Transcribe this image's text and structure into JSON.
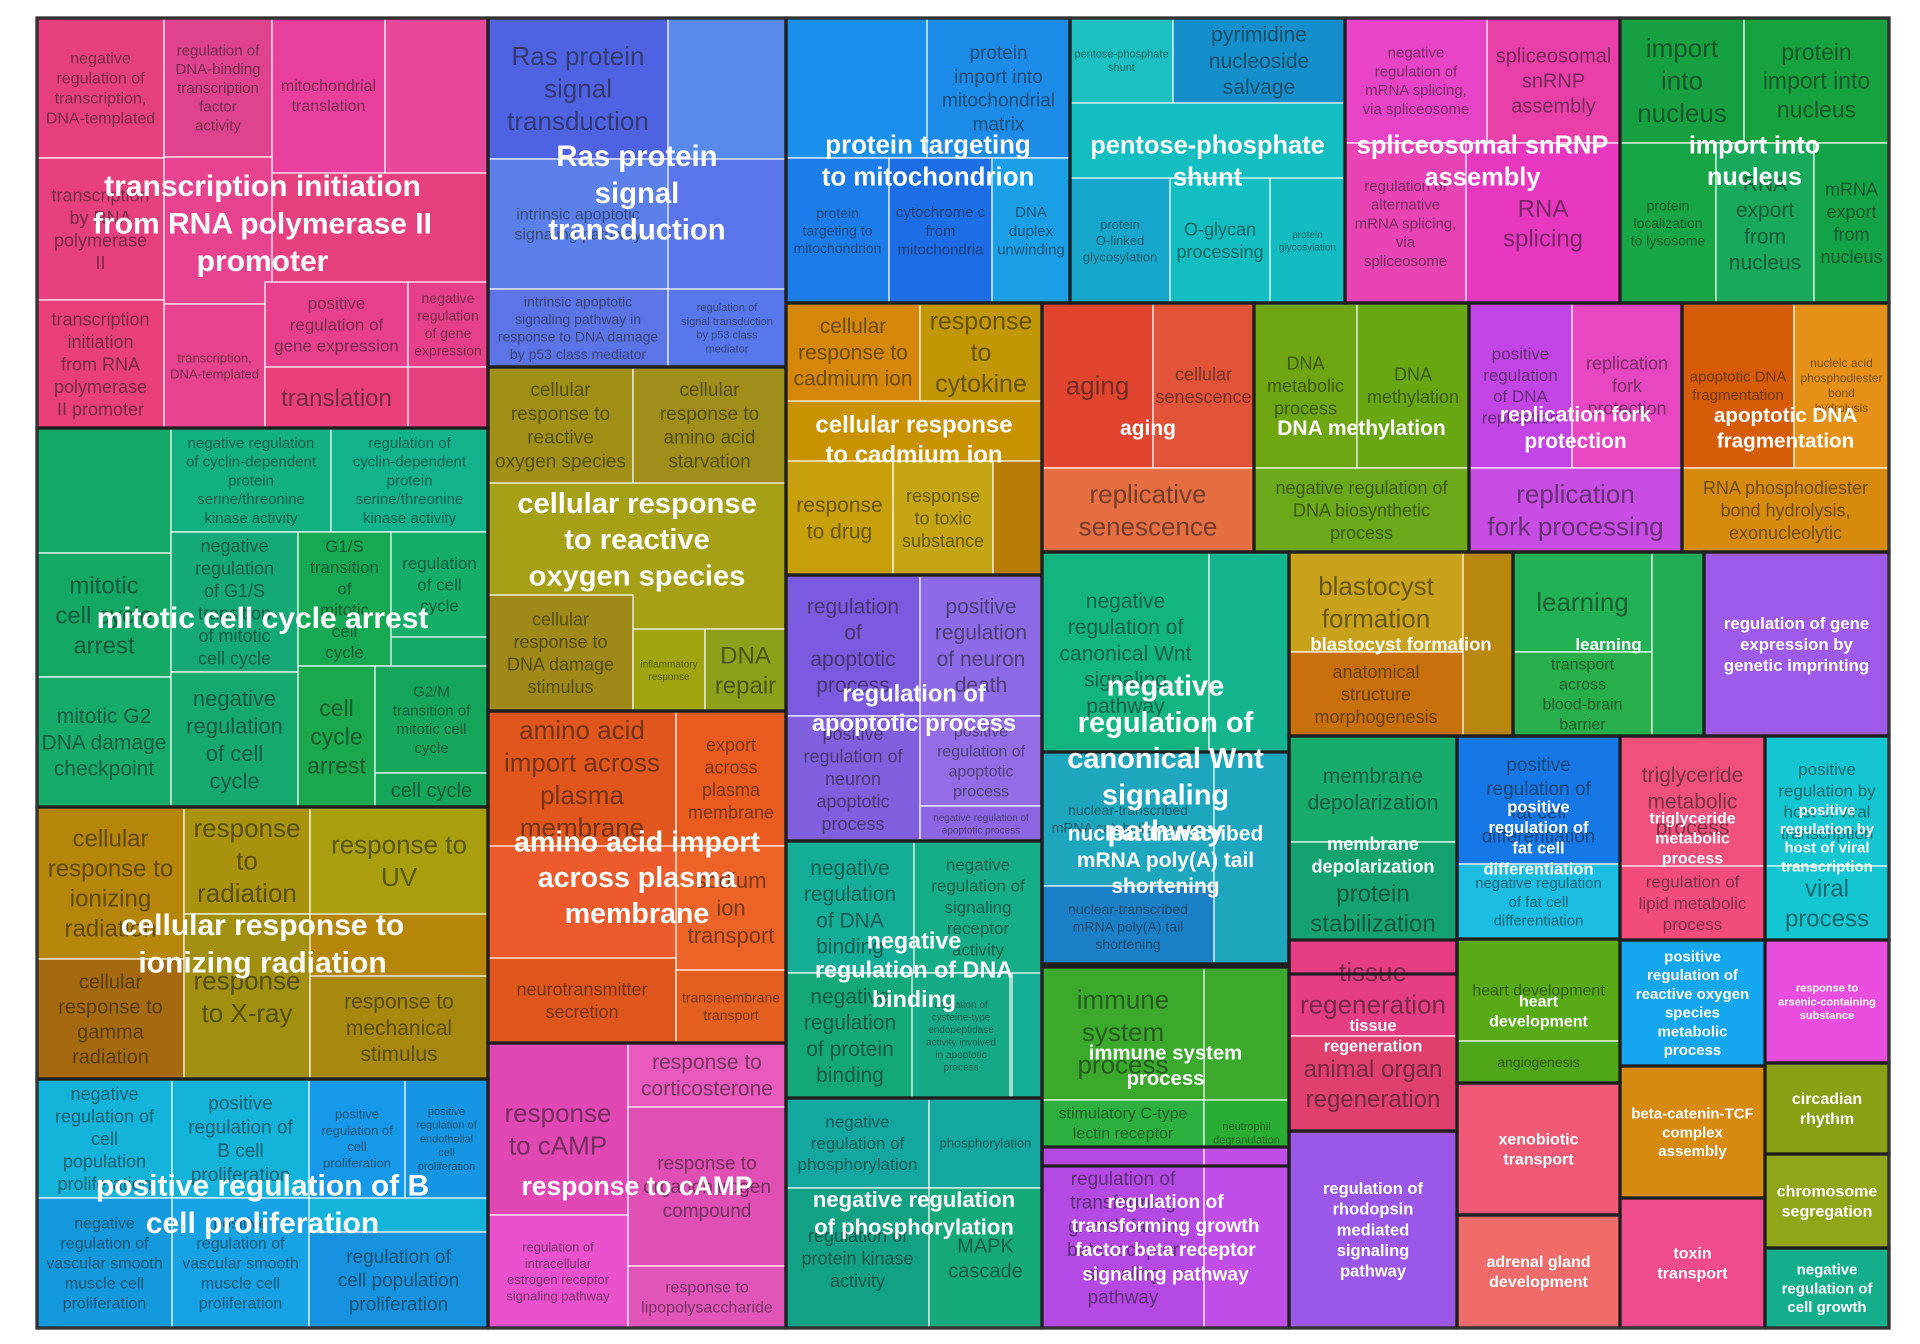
{
  "chart_data": {
    "type": "treemap",
    "groups": [
      {
        "label": "transcription initiation from RNA polymerase II promoter",
        "color": "#E7407E",
        "terms": [
          "negative regulation of transcription, DNA-templated",
          "regulation of DNA-binding transcription factor activity",
          "mitochondrial translation",
          "",
          "transcription by RNA polymerase II",
          "",
          "transcription initiation from RNA polymerase II promoter",
          "positive regulation of gene expression",
          "negative regulation of gene expression",
          "transcription, DNA-templated",
          "translation"
        ]
      },
      {
        "label": "mitotic cell cycle arrest",
        "color": "#14A866",
        "terms": [
          "",
          "negative regulation of cyclin-dependent protein serine/threonine kinase activity",
          "regulation of cyclin-dependent protein serine/threonine kinase activity",
          "mitotic cell cycle arrest",
          "negative regulation of G1/S transition of mitotic cell cycle",
          "G1/S transition of mitotic cell cycle",
          "regulation of cell cycle",
          "mitotic G2 DNA damage checkpoint",
          "negative regulation of cell cycle",
          "cell cycle arrest",
          "G2/M transition of mitotic cell cycle",
          "cell cycle"
        ]
      },
      {
        "label": "cellular response to ionizing radiation",
        "color": "#B5860A",
        "terms": [
          "cellular response to ionizing radiation",
          "response to radiation",
          "response to UV",
          "cellular response to gamma radiation",
          "response to X-ray",
          "response to mechanical stimulus"
        ]
      },
      {
        "label": "positive regulation of B cell proliferation",
        "color": "#14B4DA",
        "terms": [
          "negative regulation of cell population proliferation",
          "positive regulation of B cell proliferation",
          "positive regulation of cell proliferation",
          "positive regulation of endothelial cell proliferation",
          "negative regulation of vascular smooth muscle cell proliferation",
          "positive regulation of vascular smooth muscle cell proliferation",
          "regulation of cell population proliferation"
        ]
      },
      {
        "label": "Ras protein signal transduction",
        "color": "#5A74EC",
        "terms": [
          "Ras protein signal transduction",
          "",
          "intrinsic apoptotic signaling pathway",
          "intrinsic apoptotic signaling pathway in response to DNA damage by p53 class mediator",
          "regulation of signal transduction by p53 class mediator"
        ]
      },
      {
        "label": "cellular response to reactive oxygen species",
        "color": "#A6A016",
        "terms": [
          "cellular response to reactive oxygen species",
          "cellular response to amino acid starvation",
          "cellular response to DNA damage stimulus",
          "inflammatory response",
          "DNA repair"
        ]
      },
      {
        "label": "amino acid import across plasma membrane",
        "color": "#ED5A2C",
        "terms": [
          "amino acid import across plasma membrane",
          "export across plasma membrane",
          "sodium ion transport",
          "neurotransmitter secretion",
          "transmembrane transport"
        ]
      },
      {
        "label": "response to cAMP",
        "color": "#E355C2",
        "terms": [
          "response to cAMP",
          "response to corticosterone",
          "response to organonitrogen compound",
          "regulation of intracellular estrogen receptor signaling pathway",
          "response to lipopolysaccharide"
        ]
      },
      {
        "label": "protein targeting to mitochondrion",
        "color": "#1796EE",
        "terms": [
          "",
          "protein import into mitochondrial matrix",
          "protein targeting to mitochondrion",
          "cytochrome c from mitochondria",
          "DNA duplex unwinding"
        ]
      },
      {
        "label": "cellular response to cadmium ion",
        "color": "#C99300",
        "terms": [
          "cellular response to cadmium ion",
          "response to cytokine",
          "response to drug",
          "response to toxic substance",
          ""
        ]
      },
      {
        "label": "regulation of apoptotic process",
        "color": "#8C68E2",
        "terms": [
          "regulation of apoptotic process",
          "positive regulation of neuron death",
          "positive regulation of neuron apoptotic process",
          "positive regulation of apoptotic process",
          "negative regulation of apoptotic process"
        ]
      },
      {
        "label": "negative regulation of DNA binding",
        "color": "#14AE98",
        "terms": [
          "negative regulation of DNA binding",
          "negative regulation of signaling receptor activity",
          "negative regulation of protein binding",
          "",
          "activation of cysteine-type endopeptidase activity involved in apoptotic process"
        ]
      },
      {
        "label": "negative regulation of phosphorylation",
        "color": "#13A7A0",
        "terms": [
          "negative regulation of phosphorylation",
          "phosphorylation",
          "regulation of protein kinase activity",
          "MAPK cascade"
        ]
      },
      {
        "label": "pentose-phosphate shunt",
        "color": "#13BEC0",
        "terms": [
          "pentose-phosphate shunt",
          "pyrimidine nucleoside salvage",
          "protein O-linked glycosylation",
          "O-glycan processing",
          "protein glycosylation"
        ]
      },
      {
        "label": "aging",
        "color": "#E8523F",
        "terms": [
          "aging",
          "cellular senescence",
          "replicative senescence"
        ]
      },
      {
        "label": "negative regulation of canonical Wnt signaling pathway",
        "color": "#12B482",
        "terms": [
          "negative regulation of canonical Wnt signaling pathway",
          ""
        ]
      },
      {
        "label": "nuclear-transcribed mRNA poly(A) tail shortening",
        "color": "#1EA6BF",
        "terms": [
          "nuclear-transcribed mRNA catabolic process",
          "nuclear-transcribed mRNA poly(A) tail shortening",
          ""
        ]
      },
      {
        "label": "immune system process",
        "color": "#3BAA2C",
        "terms": [
          "immune system process",
          "stimulatory C-type lectin receptor signaling pathway",
          "neutrophil degranulation"
        ]
      },
      {
        "label": "regulation of transforming growth factor beta receptor signaling pathway",
        "color": "#B449E4",
        "terms": [
          "regulation of transforming growth factor beta receptor signaling pathway",
          ""
        ]
      },
      {
        "label": "spliceosomal snRNP assembly",
        "color": "#E83FC0",
        "terms": [
          "negative regulation of mRNA splicing, via spliceosome",
          "spliceosomal snRNP assembly",
          "regulation of alternative mRNA splicing, via spliceosome",
          "RNA splicing"
        ]
      },
      {
        "label": "DNA methylation",
        "color": "#6BA81A",
        "terms": [
          "DNA metabolic process",
          "DNA methylation",
          "negative regulation of DNA biosynthetic process"
        ]
      },
      {
        "label": "replication fork protection",
        "color": "#C84DE4",
        "terms": [
          "positive regulation of DNA replication",
          "replication fork protection",
          "replication fork processing"
        ]
      },
      {
        "label": "blastocyst formation",
        "color": "#C59A14",
        "terms": [
          "blastocyst formation",
          "anatomical structure morphogenesis",
          ""
        ]
      },
      {
        "label": "learning",
        "color": "#22B154",
        "terms": [
          "learning",
          "transport across blood-brain barrier",
          ""
        ]
      },
      {
        "label": "membrane depolarization",
        "color": "#17AC6C",
        "terms": [
          "membrane depolarization",
          "protein stabilization"
        ]
      },
      {
        "label": "tissue regeneration",
        "color": "#E73E83",
        "terms": [
          "tissue regeneration",
          "animal organ regeneration"
        ]
      },
      {
        "label": "regulation of rhodopsin mediated signaling pathway",
        "color": "#9B58E8",
        "terms": []
      },
      {
        "label": "import into nucleus",
        "color": "#16A23E",
        "terms": [
          "import into nucleus",
          "protein import into nucleus",
          "protein localization to lysosome",
          "RNA export from nucleus",
          "mRNA export from nucleus"
        ]
      },
      {
        "label": "apoptotic DNA fragmentation",
        "color": "#E08A14",
        "terms": [
          "apoptotic DNA fragmentation",
          "nucleic acid phosphodiester bond hydrolysis",
          "RNA phosphodiester bond hydrolysis, exonucleolytic"
        ]
      },
      {
        "label": "regulation of gene expression by genetic imprinting",
        "color": "#9E5AE8",
        "terms": []
      },
      {
        "label": "positive regulation of fat cell differentiation",
        "color": "#14A4EE",
        "terms": [
          "positive regulation of fat cell differentiation",
          "negative regulation of fat cell differentiation"
        ]
      },
      {
        "label": "triglyceride metabolic process",
        "color": "#F0507C",
        "terms": [
          "triglyceride metabolic process",
          "regulation of lipid metabolic process"
        ]
      },
      {
        "label": "positive regulation by host of viral transcription",
        "color": "#14C6D2",
        "terms": [
          "positive regulation by host of viral transcription",
          "viral process"
        ]
      },
      {
        "label": "heart development",
        "color": "#58AA16",
        "terms": [
          "heart development",
          "angiogenesis"
        ]
      },
      {
        "label": "positive regulation of reactive oxygen species metabolic process",
        "color": "#14A6EE",
        "terms": []
      },
      {
        "label": "response to arsenic-containing substance",
        "color": "#EA4EDE",
        "terms": []
      },
      {
        "label": "xenobiotic transport",
        "color": "#F05A74",
        "terms": []
      },
      {
        "label": "adrenal gland development",
        "color": "#F06C6A",
        "terms": []
      },
      {
        "label": "beta-catenin-TCF complex assembly",
        "color": "#D68A10",
        "terms": []
      },
      {
        "label": "toxin transport",
        "color": "#F04C8C",
        "terms": []
      },
      {
        "label": "circadian rhythm",
        "color": "#8AA014",
        "terms": []
      },
      {
        "label": "chromosome segregation",
        "color": "#92A418",
        "terms": []
      },
      {
        "label": "negative regulation of cell growth",
        "color": "#14AE8C",
        "terms": []
      }
    ]
  }
}
